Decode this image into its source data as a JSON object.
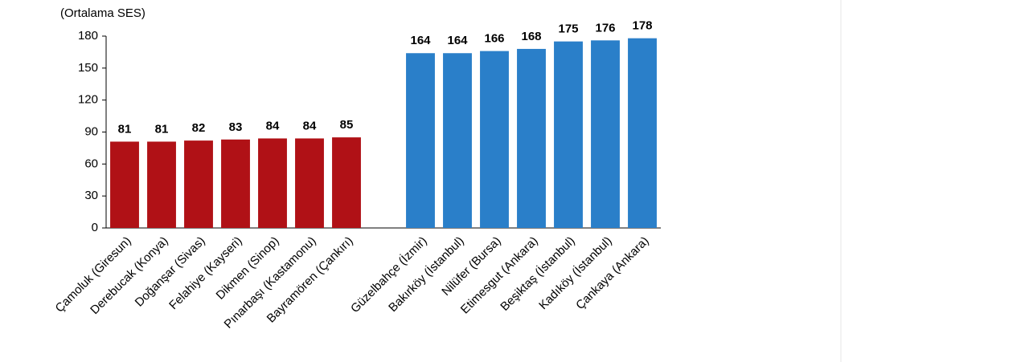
{
  "chart_data": {
    "type": "bar",
    "y_label": "(Ortalama SES)",
    "categories": [
      "Çamoluk (Giresun)",
      "Derebucak (Konya)",
      "Doğanşar (Sivas)",
      "Felahiye (Kayseri)",
      "Dikmen (Sinop)",
      "Pınarbaşı (Kastamonu)",
      "Bayramören (Çankırı)",
      null,
      "Güzelbahçe (İzmir)",
      "Bakırköy (İstanbul)",
      "Nilüfer (Bursa)",
      "Etimesgut (Ankara)",
      "Beşiktaş (İstanbul)",
      "Kadıköy (İstanbul)",
      "Çankaya (Ankara)"
    ],
    "values": [
      81,
      81,
      82,
      83,
      84,
      84,
      85,
      null,
      164,
      164,
      166,
      168,
      175,
      176,
      178
    ],
    "colors": [
      "#b01116",
      "#b01116",
      "#b01116",
      "#b01116",
      "#b01116",
      "#b01116",
      "#b01116",
      null,
      "#2a7fc9",
      "#2a7fc9",
      "#2a7fc9",
      "#2a7fc9",
      "#2a7fc9",
      "#2a7fc9",
      "#2a7fc9"
    ],
    "ylim": [
      0,
      180
    ],
    "yticks": [
      0,
      30,
      60,
      90,
      120,
      150,
      180
    ],
    "grid": false
  }
}
